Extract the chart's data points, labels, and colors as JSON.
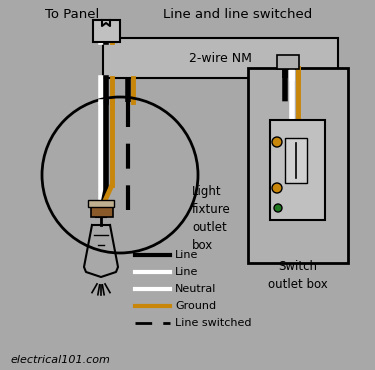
{
  "bg": "#a8a8a8",
  "wire_black": "#000000",
  "wire_white": "#ffffff",
  "wire_ground": "#c8860a",
  "box_fill": "#b0b0b0",
  "box_edge": "#222222",
  "socket_brown": "#8B5A2B",
  "title_left": "To Panel",
  "title_center": "Line and line switched",
  "nm_label": "2-wire NM",
  "light_label": "Light\nfixture\noutlet\nbox",
  "switch_label": "Switch\noutlet box",
  "watermark": "electrical101.com",
  "legend": [
    {
      "label": "Line",
      "color": "#000000",
      "lw": 3,
      "dash": false
    },
    {
      "label": "Line",
      "color": "#ffffff",
      "lw": 3,
      "dash": false,
      "outline": true
    },
    {
      "label": "Neutral",
      "color": "#ffffff",
      "lw": 3,
      "dash": false
    },
    {
      "label": "Ground",
      "color": "#c8860a",
      "lw": 3,
      "dash": false
    },
    {
      "label": "Line switched",
      "color": "#000000",
      "lw": 2,
      "dash": true
    }
  ]
}
